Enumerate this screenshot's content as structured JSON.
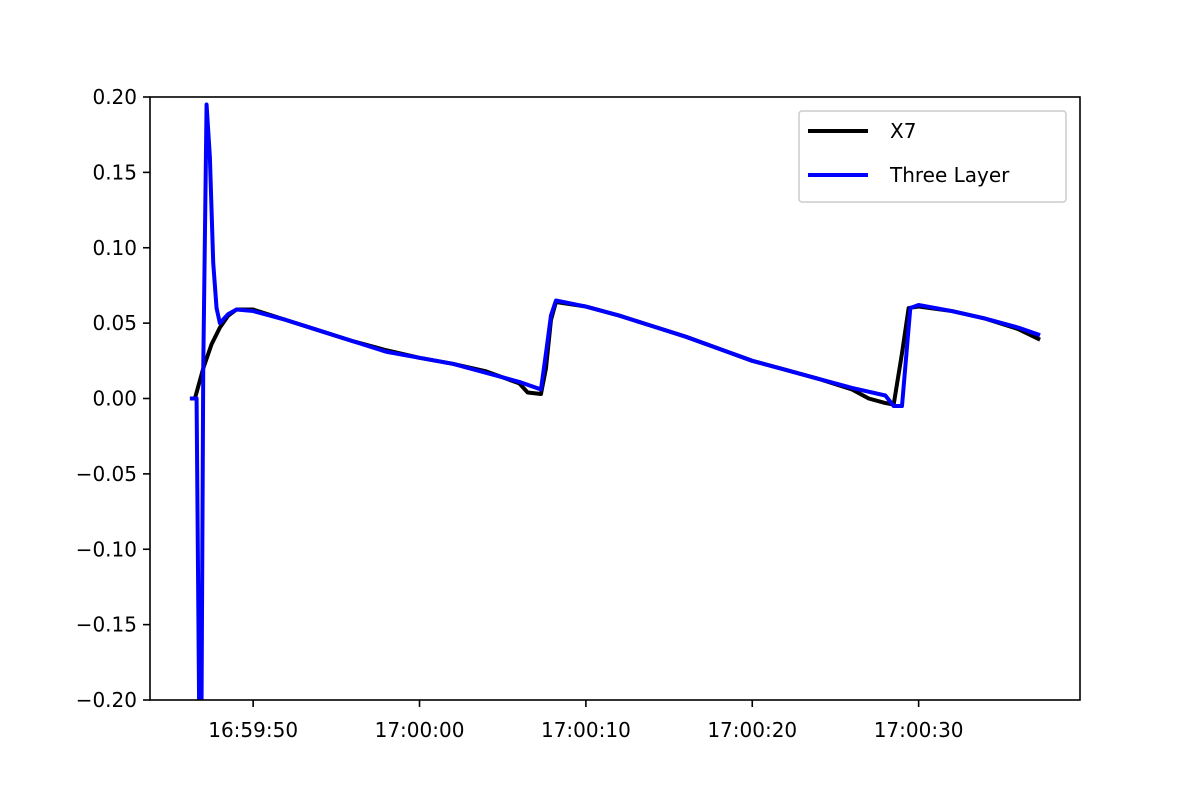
{
  "chart_data": {
    "type": "line",
    "title": "",
    "xlabel": "",
    "ylabel": "",
    "x_unit": "time of day",
    "xlim": [
      "16:59:43.8",
      "17:00:39.7"
    ],
    "ylim": [
      -0.2,
      0.2
    ],
    "x_ticks": [
      "16:59:50",
      "17:00:00",
      "17:00:10",
      "17:00:20",
      "17:00:30"
    ],
    "y_ticks": [
      "0.20",
      "0.15",
      "0.10",
      "0.05",
      "0.00",
      "−0.05",
      "−0.10",
      "−0.15",
      "−0.20"
    ],
    "y_tick_values": [
      0.2,
      0.15,
      0.1,
      0.05,
      0.0,
      -0.05,
      -0.1,
      -0.15,
      -0.2
    ],
    "grid": false,
    "legend_position": "top-right",
    "series": [
      {
        "name": "X7",
        "color": "#000000",
        "points": [
          [
            "16:59:46.2",
            0.0
          ],
          [
            "16:59:46.5",
            0.0
          ],
          [
            "16:59:47.0",
            0.02
          ],
          [
            "16:59:47.5",
            0.036
          ],
          [
            "16:59:48.0",
            0.047
          ],
          [
            "16:59:48.5",
            0.055
          ],
          [
            "16:59:49.0",
            0.059
          ],
          [
            "16:59:50.0",
            0.059
          ],
          [
            "16:59:52.0",
            0.052
          ],
          [
            "16:59:54.0",
            0.045
          ],
          [
            "16:59:56.0",
            0.038
          ],
          [
            "16:59:58.0",
            0.032
          ],
          [
            "17:00:00.0",
            0.027
          ],
          [
            "17:00:02.0",
            0.023
          ],
          [
            "17:00:04.0",
            0.018
          ],
          [
            "17:00:06.0",
            0.01
          ],
          [
            "17:00:06.5",
            0.004
          ],
          [
            "17:00:07.3",
            0.003
          ],
          [
            "17:00:07.6",
            0.02
          ],
          [
            "17:00:07.9",
            0.052
          ],
          [
            "17:00:08.2",
            0.064
          ],
          [
            "17:00:10.0",
            0.061
          ],
          [
            "17:00:12.0",
            0.055
          ],
          [
            "17:00:14.0",
            0.048
          ],
          [
            "17:00:16.0",
            0.041
          ],
          [
            "17:00:18.0",
            0.033
          ],
          [
            "17:00:20.0",
            0.025
          ],
          [
            "17:00:22.0",
            0.019
          ],
          [
            "17:00:24.0",
            0.013
          ],
          [
            "17:00:26.0",
            0.006
          ],
          [
            "17:00:27.0",
            0.0
          ],
          [
            "17:00:28.0",
            -0.003
          ],
          [
            "17:00:28.5",
            -0.004
          ],
          [
            "17:00:29.0",
            0.03
          ],
          [
            "17:00:29.4",
            0.06
          ],
          [
            "17:00:30.0",
            0.061
          ],
          [
            "17:00:32.0",
            0.058
          ],
          [
            "17:00:34.0",
            0.053
          ],
          [
            "17:00:36.0",
            0.046
          ],
          [
            "17:00:37.3",
            0.039
          ]
        ]
      },
      {
        "name": "Three Layer",
        "color": "#0000ff",
        "points": [
          [
            "16:59:46.2",
            0.0
          ],
          [
            "16:59:46.6",
            0.0
          ],
          [
            "16:59:46.75",
            -0.2
          ],
          [
            "16:59:46.9",
            -0.2
          ],
          [
            "16:59:47.0",
            0.02
          ],
          [
            "16:59:47.2",
            0.195
          ],
          [
            "16:59:47.4",
            0.16
          ],
          [
            "16:59:47.6",
            0.09
          ],
          [
            "16:59:47.8",
            0.06
          ],
          [
            "16:59:48.0",
            0.05
          ],
          [
            "16:59:48.5",
            0.056
          ],
          [
            "16:59:49.0",
            0.059
          ],
          [
            "16:59:50.0",
            0.058
          ],
          [
            "16:59:52.0",
            0.052
          ],
          [
            "16:59:54.0",
            0.045
          ],
          [
            "16:59:56.0",
            0.038
          ],
          [
            "16:59:58.0",
            0.031
          ],
          [
            "17:00:00.0",
            0.027
          ],
          [
            "17:00:02.0",
            0.023
          ],
          [
            "17:00:04.0",
            0.017
          ],
          [
            "17:00:06.0",
            0.011
          ],
          [
            "17:00:07.3",
            0.006
          ],
          [
            "17:00:07.6",
            0.03
          ],
          [
            "17:00:07.9",
            0.055
          ],
          [
            "17:00:08.2",
            0.065
          ],
          [
            "17:00:10.0",
            0.061
          ],
          [
            "17:00:12.0",
            0.055
          ],
          [
            "17:00:14.0",
            0.048
          ],
          [
            "17:00:16.0",
            0.041
          ],
          [
            "17:00:18.0",
            0.033
          ],
          [
            "17:00:20.0",
            0.025
          ],
          [
            "17:00:22.0",
            0.019
          ],
          [
            "17:00:24.0",
            0.013
          ],
          [
            "17:00:26.0",
            0.007
          ],
          [
            "17:00:28.0",
            0.002
          ],
          [
            "17:00:28.5",
            -0.005
          ],
          [
            "17:00:29.0",
            -0.005
          ],
          [
            "17:00:29.5",
            0.06
          ],
          [
            "17:00:30.0",
            0.062
          ],
          [
            "17:00:32.0",
            0.058
          ],
          [
            "17:00:34.0",
            0.053
          ],
          [
            "17:00:36.0",
            0.047
          ],
          [
            "17:00:37.3",
            0.042
          ]
        ]
      }
    ]
  }
}
